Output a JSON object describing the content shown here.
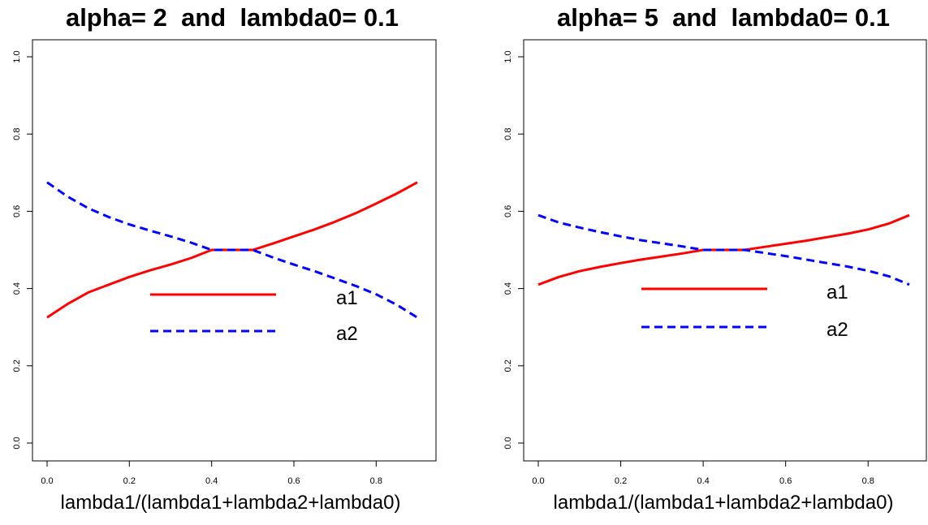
{
  "chart_data": [
    {
      "type": "line",
      "title": "alpha= 2  and  lambda0= 0.1",
      "xlabel": "lambda1/(lambda1+lambda2+lambda0)",
      "ylabel": "",
      "xlim": [
        0.0,
        0.9
      ],
      "ylim": [
        0.0,
        1.0
      ],
      "xticks": [
        "0.0",
        "0.2",
        "0.4",
        "0.6",
        "0.8"
      ],
      "yticks": [
        "0.0",
        "0.2",
        "0.4",
        "0.6",
        "0.8",
        "1.0"
      ],
      "grid": false,
      "legend_position": "center",
      "series": [
        {
          "name": "a1",
          "color": "#ff0000",
          "style": "solid",
          "x": [
            0.0,
            0.05,
            0.1,
            0.15,
            0.2,
            0.25,
            0.3,
            0.35,
            0.4,
            0.45,
            0.5,
            0.55,
            0.6,
            0.65,
            0.7,
            0.75,
            0.8,
            0.85,
            0.9
          ],
          "y": [
            0.325,
            0.36,
            0.39,
            0.41,
            0.43,
            0.447,
            0.462,
            0.479,
            0.5,
            0.5,
            0.5,
            0.517,
            0.535,
            0.553,
            0.573,
            0.595,
            0.62,
            0.646,
            0.675
          ]
        },
        {
          "name": "a2",
          "color": "#0000ff",
          "style": "dashed",
          "x": [
            0.0,
            0.05,
            0.1,
            0.15,
            0.2,
            0.25,
            0.3,
            0.35,
            0.4,
            0.45,
            0.5,
            0.55,
            0.6,
            0.65,
            0.7,
            0.75,
            0.8,
            0.85,
            0.9
          ],
          "y": [
            0.675,
            0.638,
            0.608,
            0.585,
            0.566,
            0.55,
            0.535,
            0.519,
            0.5,
            0.5,
            0.5,
            0.48,
            0.462,
            0.445,
            0.426,
            0.407,
            0.385,
            0.358,
            0.325
          ]
        }
      ]
    },
    {
      "type": "line",
      "title": "alpha= 5  and  lambda0= 0.1",
      "xlabel": "lambda1/(lambda1+lambda2+lambda0)",
      "ylabel": "",
      "xlim": [
        0.0,
        0.9
      ],
      "ylim": [
        0.0,
        1.0
      ],
      "xticks": [
        "0.0",
        "0.2",
        "0.4",
        "0.6",
        "0.8"
      ],
      "yticks": [
        "0.0",
        "0.2",
        "0.4",
        "0.6",
        "0.8",
        "1.0"
      ],
      "grid": false,
      "legend_position": "center",
      "series": [
        {
          "name": "a1",
          "color": "#ff0000",
          "style": "solid",
          "x": [
            0.0,
            0.05,
            0.1,
            0.15,
            0.2,
            0.25,
            0.3,
            0.35,
            0.4,
            0.45,
            0.5,
            0.55,
            0.6,
            0.65,
            0.7,
            0.75,
            0.8,
            0.85,
            0.9
          ],
          "y": [
            0.41,
            0.43,
            0.445,
            0.456,
            0.466,
            0.475,
            0.483,
            0.491,
            0.5,
            0.5,
            0.5,
            0.508,
            0.516,
            0.524,
            0.533,
            0.542,
            0.553,
            0.568,
            0.59
          ]
        },
        {
          "name": "a2",
          "color": "#0000ff",
          "style": "dashed",
          "x": [
            0.0,
            0.05,
            0.1,
            0.15,
            0.2,
            0.25,
            0.3,
            0.35,
            0.4,
            0.45,
            0.5,
            0.55,
            0.6,
            0.65,
            0.7,
            0.75,
            0.8,
            0.85,
            0.9
          ],
          "y": [
            0.59,
            0.571,
            0.558,
            0.546,
            0.535,
            0.525,
            0.517,
            0.509,
            0.5,
            0.5,
            0.5,
            0.492,
            0.484,
            0.475,
            0.466,
            0.457,
            0.446,
            0.432,
            0.41
          ]
        }
      ]
    }
  ]
}
